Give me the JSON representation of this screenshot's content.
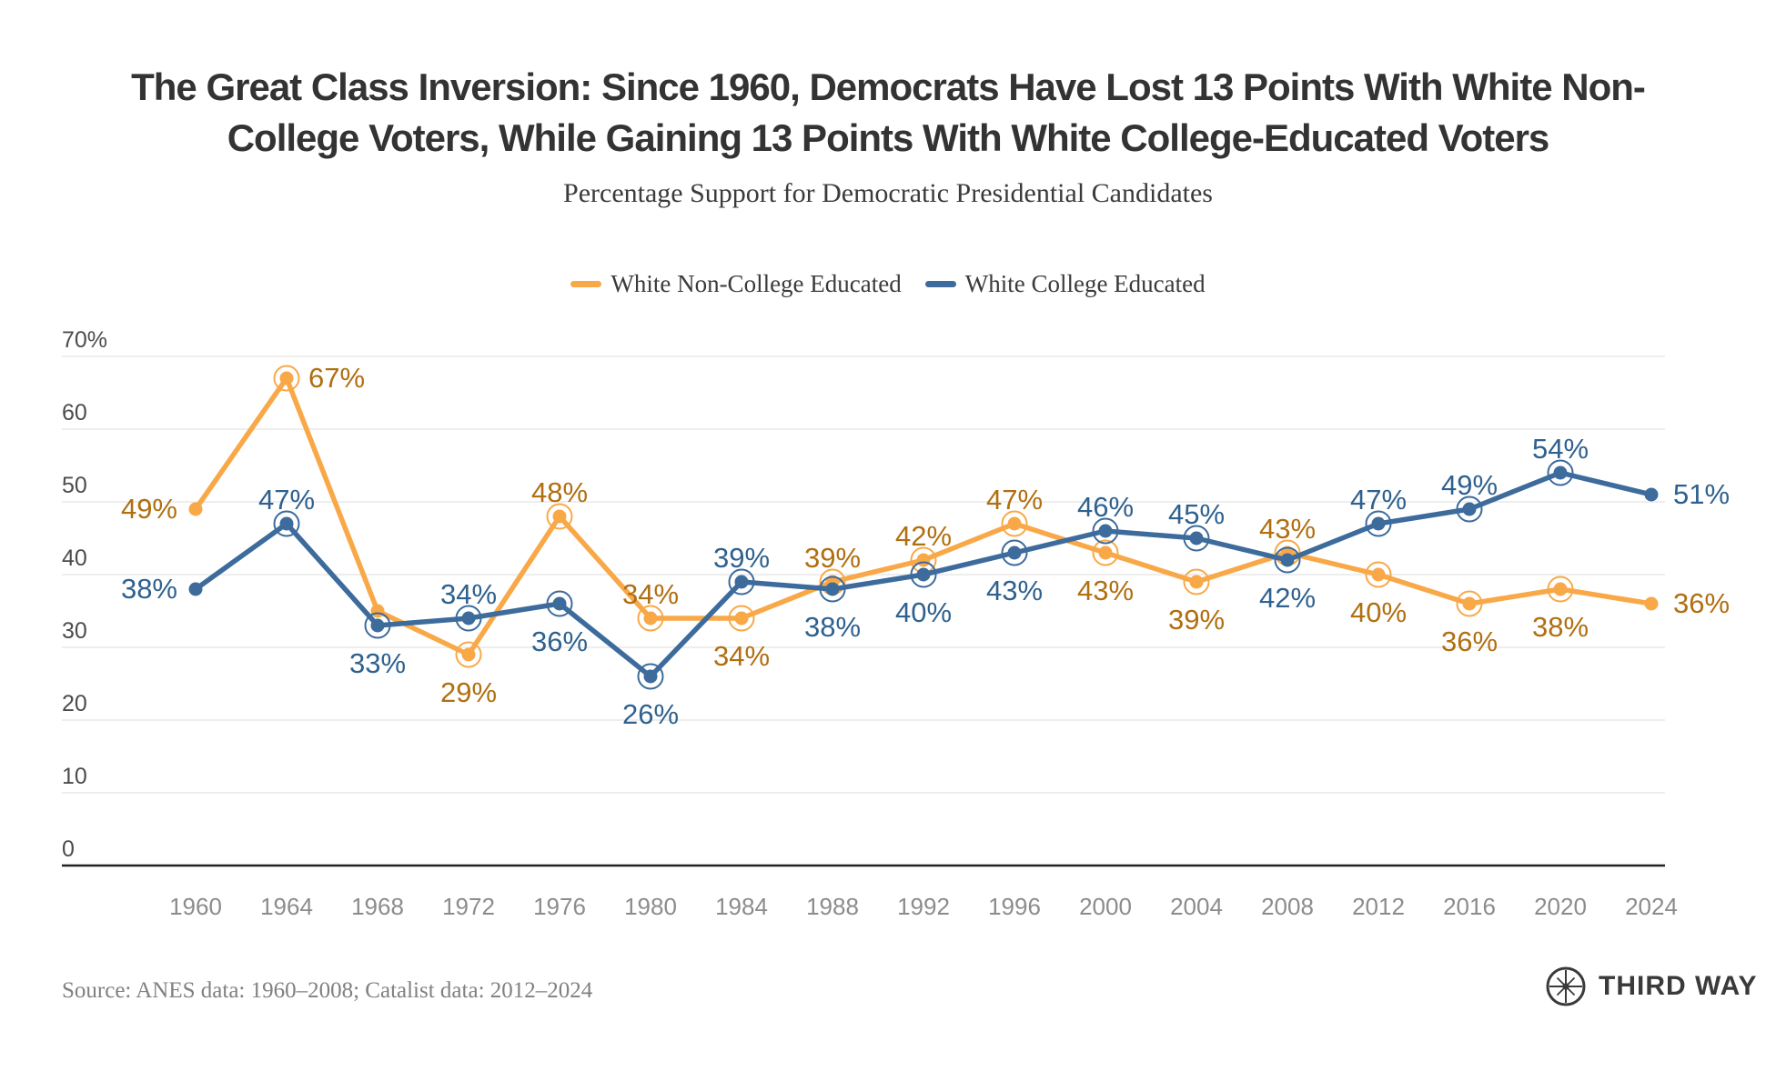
{
  "page": {
    "title_line1": "The Great Class Inversion: Since 1960, Democrats Have Lost 13 Points With White Non-",
    "title_line2": "College Voters, While Gaining 13 Points With White College-Educated Voters",
    "subtitle": "Percentage Support for Democratic Presidential Candidates",
    "source": "Source: ANES data: 1960–2008; Catalist data: 2012–2024",
    "logo_text": "THIRD WAY"
  },
  "colors": {
    "orange": "#F9A848",
    "orange_label": "#B06F10",
    "blue": "#3C6B9C",
    "blue_label": "#2F618F",
    "grid": "#E8E8E8",
    "axis": "#212121",
    "y_tick_text": "#4C4C4C",
    "x_tick_text": "#8C8C8C"
  },
  "chart_data": {
    "type": "line",
    "title": "The Great Class Inversion: Since 1960, Democrats Have Lost 13 Points With White Non-College Voters, While Gaining 13 Points With White College-Educated Voters",
    "subtitle": "Percentage Support for Democratic Presidential Candidates",
    "x": [
      1960,
      1964,
      1968,
      1972,
      1976,
      1980,
      1984,
      1988,
      1992,
      1996,
      2000,
      2004,
      2008,
      2012,
      2016,
      2020,
      2024
    ],
    "ylim": [
      0,
      70
    ],
    "ytick_labels": [
      "70%",
      "60",
      "50",
      "40",
      "30",
      "20",
      "10",
      "0"
    ],
    "grid": true,
    "legend_position": "top",
    "series": [
      {
        "name": "White Non-College Educated",
        "slug": "white-non-college",
        "color": "#F9A848",
        "label_color": "#B06F10",
        "values": [
          49,
          67,
          35,
          29,
          48,
          34,
          34,
          39,
          42,
          47,
          43,
          39,
          43,
          40,
          36,
          38,
          36
        ],
        "labels": [
          "49%",
          "67%",
          null,
          "29%",
          "48%",
          "34%",
          "34%",
          "39%",
          "42%",
          "47%",
          "43%",
          "39%",
          "43%",
          "40%",
          "36%",
          "38%",
          "36%"
        ],
        "label_pos": [
          "left",
          "right",
          null,
          "below",
          "above",
          "above",
          "below",
          "above",
          "above",
          "above",
          "below",
          "below",
          "above",
          "below",
          "below",
          "below",
          "right"
        ],
        "rings": [
          false,
          true,
          false,
          true,
          true,
          true,
          true,
          true,
          true,
          true,
          true,
          true,
          true,
          true,
          true,
          true,
          false
        ]
      },
      {
        "name": "White College Educated",
        "slug": "white-college",
        "color": "#3C6B9C",
        "label_color": "#2F618F",
        "values": [
          38,
          47,
          33,
          34,
          36,
          26,
          39,
          38,
          40,
          43,
          46,
          45,
          42,
          47,
          49,
          54,
          51
        ],
        "labels": [
          "38%",
          "47%",
          "33%",
          "34%",
          "36%",
          "26%",
          "39%",
          "38%",
          "40%",
          "43%",
          "46%",
          "45%",
          "42%",
          "47%",
          "49%",
          "54%",
          "51%"
        ],
        "label_pos": [
          "left",
          "above",
          "below",
          "above",
          "below",
          "below",
          "above",
          "below",
          "below",
          "below",
          "above",
          "above",
          "below",
          "above",
          "above",
          "above",
          "right"
        ],
        "rings": [
          false,
          true,
          true,
          true,
          true,
          true,
          true,
          true,
          true,
          true,
          true,
          true,
          true,
          true,
          true,
          true,
          false
        ]
      }
    ]
  }
}
